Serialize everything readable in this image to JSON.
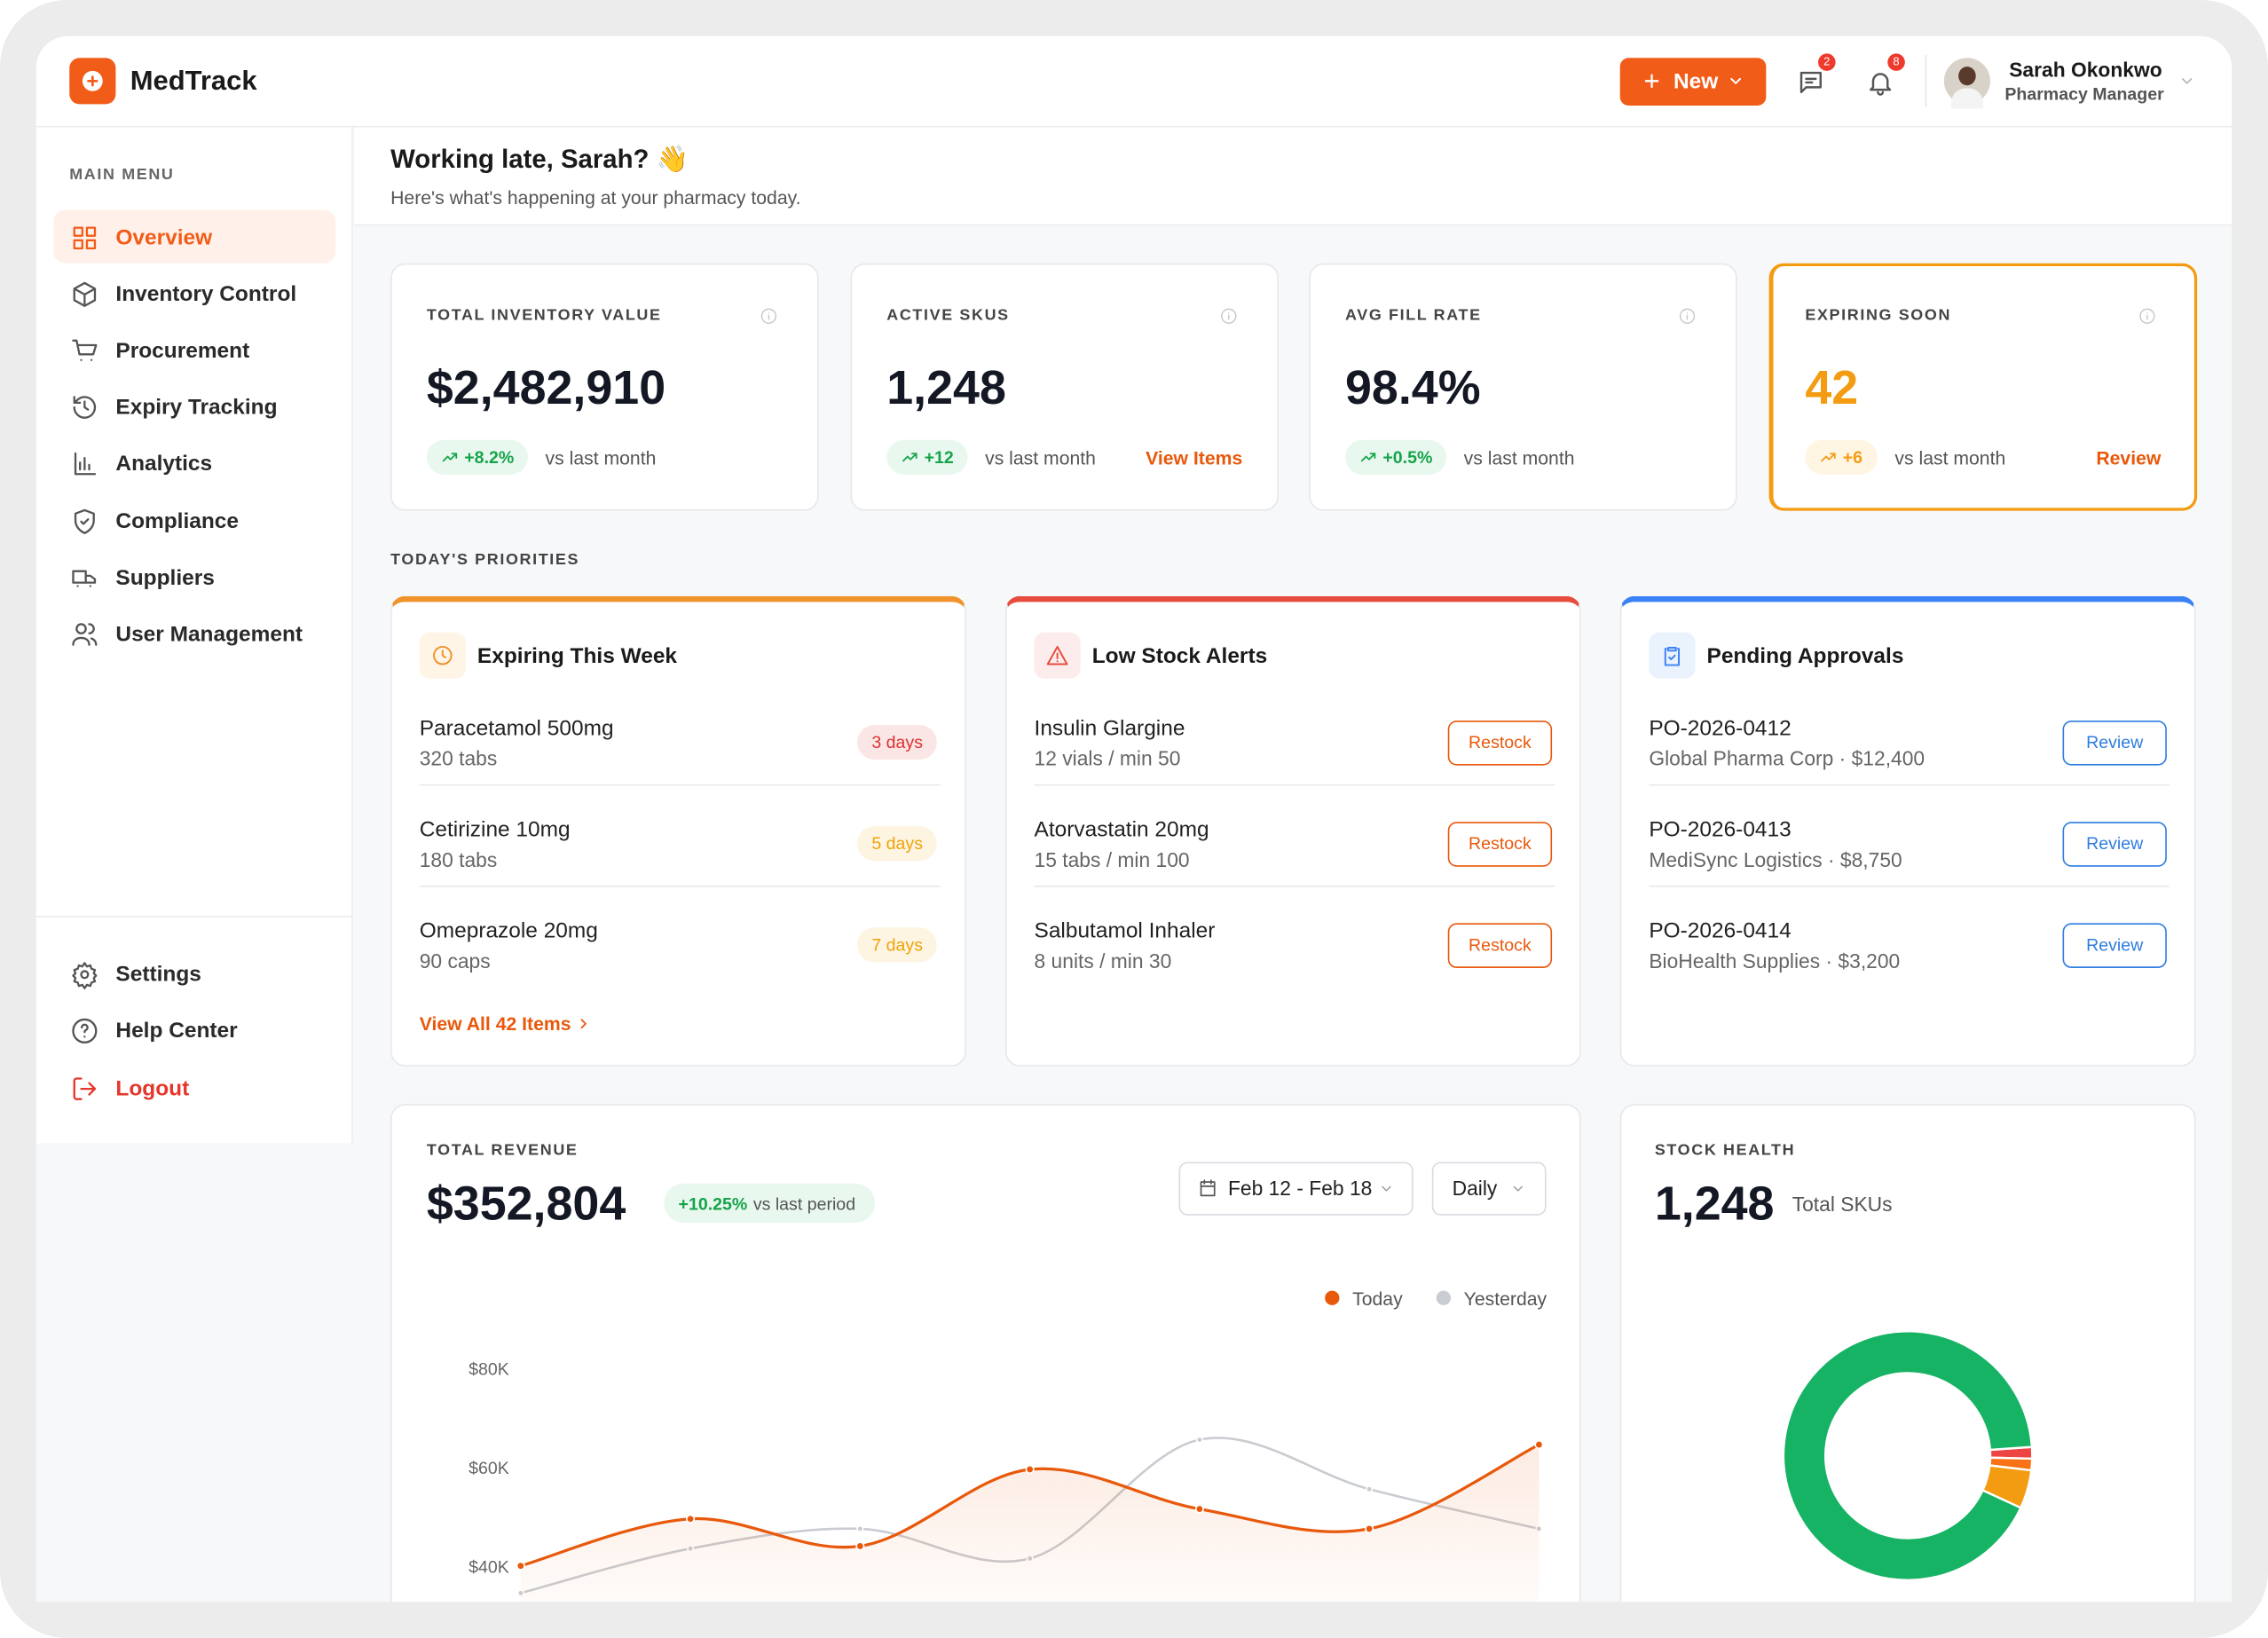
{
  "app": {
    "name": "MedTrack"
  },
  "header": {
    "new_button": "New",
    "messages_badge": 2,
    "notifications_badge": 8,
    "user": {
      "name": "Sarah Okonkwo",
      "role": "Pharmacy Manager"
    }
  },
  "sidebar": {
    "section": "MAIN MENU",
    "items": [
      "Overview",
      "Inventory Control",
      "Procurement",
      "Expiry Tracking",
      "Analytics",
      "Compliance",
      "Suppliers",
      "User Management"
    ],
    "footer_items": [
      "Settings",
      "Help Center",
      "Logout"
    ]
  },
  "greeting": {
    "title": "Working late, Sarah? 👋",
    "subtitle": "Here's what's happening at your pharmacy today."
  },
  "kpis": [
    {
      "label": "TOTAL INVENTORY VALUE",
      "value": "$2,482,910",
      "change": "+8.2%",
      "note": "vs last month"
    },
    {
      "label": "ACTIVE SKUS",
      "value": "1,248",
      "change": "+12",
      "note": "vs last month",
      "link": "View Items"
    },
    {
      "label": "AVG FILL RATE",
      "value": "98.4%",
      "change": "+0.5%",
      "note": "vs last month"
    },
    {
      "label": "EXPIRING SOON",
      "value": "42",
      "change": "+6",
      "note": "vs last month",
      "link": "Review",
      "accent_color": "#f39c12"
    }
  ],
  "priorities": {
    "title": "TODAY'S PRIORITIES",
    "cards": [
      {
        "title": "Expiring This Week",
        "accent_color": "#f0932b",
        "items": [
          {
            "name": "Paracetamol 500mg",
            "detail": "320 tabs",
            "badge": "3 days",
            "badge_color": "#e03131"
          },
          {
            "name": "Cetirizine 10mg",
            "detail": "180 tabs",
            "badge": "5 days",
            "badge_color": "#f0a30a"
          },
          {
            "name": "Omeprazole 20mg",
            "detail": "90 caps",
            "badge": "7 days",
            "badge_color": "#f0a30a"
          }
        ],
        "footer": "View All 42 Items"
      },
      {
        "title": "Low Stock Alerts",
        "accent_color": "#e74c3c",
        "action_color": "#e8590c",
        "items": [
          {
            "name": "Insulin Glargine",
            "detail": "12 vials / min 50",
            "action": "Restock"
          },
          {
            "name": "Atorvastatin 20mg",
            "detail": "15 tabs / min 100",
            "action": "Restock"
          },
          {
            "name": "Salbutamol Inhaler",
            "detail": "8 units / min 30",
            "action": "Restock"
          }
        ]
      },
      {
        "title": "Pending Approvals",
        "accent_color": "#3b82f6",
        "action_color": "#2f7de1",
        "items": [
          {
            "name": "PO-2026-0412",
            "detail": "Global Pharma Corp · $12,400",
            "action": "Review"
          },
          {
            "name": "PO-2026-0413",
            "detail": "MediSync Logistics · $8,750",
            "action": "Review"
          },
          {
            "name": "PO-2026-0414",
            "detail": "BioHealth Supplies · $3,200",
            "action": "Review"
          }
        ]
      }
    ]
  },
  "revenue": {
    "label": "TOTAL REVENUE",
    "value": "$352,804",
    "change": "+10.25%",
    "change_note": "vs last period",
    "date_range": "Feb 12 - Feb 18",
    "interval": "Daily",
    "chart_data": {
      "type": "line",
      "series": [
        {
          "name": "Today",
          "color": "#e8590c",
          "values": [
            40500,
            50000,
            44500,
            60000,
            52000,
            48000,
            65000
          ]
        },
        {
          "name": "Yesterday",
          "color": "#c9ccd1",
          "values": [
            35000,
            44000,
            48000,
            42000,
            66000,
            56000,
            48000
          ]
        }
      ],
      "ylim": [
        35000,
        85000
      ],
      "yticks": [
        {
          "value": 40000,
          "label": "$40K"
        },
        {
          "value": 60000,
          "label": "$60K"
        },
        {
          "value": 80000,
          "label": "$80K"
        }
      ],
      "grid": false
    }
  },
  "stock_health": {
    "label": "STOCK HEALTH",
    "value": "1,248",
    "note": "Total SKUs",
    "chart_data": {
      "type": "pie",
      "values": [
        1.5,
        1.5,
        5,
        92
      ],
      "colors": [
        "#ef4444",
        "#f97316",
        "#f39c12",
        "#16b364"
      ]
    }
  }
}
